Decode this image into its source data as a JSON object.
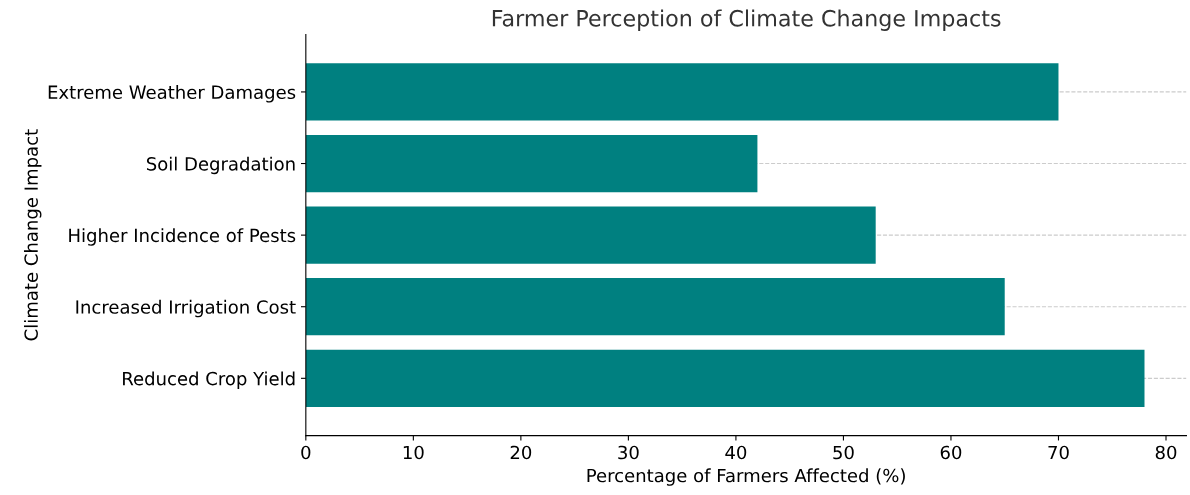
{
  "chart_data": {
    "type": "bar",
    "orientation": "horizontal",
    "title": "Farmer Perception of Climate Change Impacts",
    "xlabel": "Percentage of Farmers Affected (%)",
    "ylabel": "Climate Change Impact",
    "categories": [
      "Extreme Weather Damages",
      "Soil Degradation",
      "Higher Incidence of Pests",
      "Increased Irrigation Cost",
      "Reduced Crop Yield"
    ],
    "values": [
      70,
      42,
      53,
      65,
      78
    ],
    "color": "#008080",
    "xlim": [
      0,
      81.9
    ],
    "xticks": [
      0,
      10,
      20,
      30,
      40,
      50,
      60,
      70,
      80
    ],
    "grid": "y"
  }
}
